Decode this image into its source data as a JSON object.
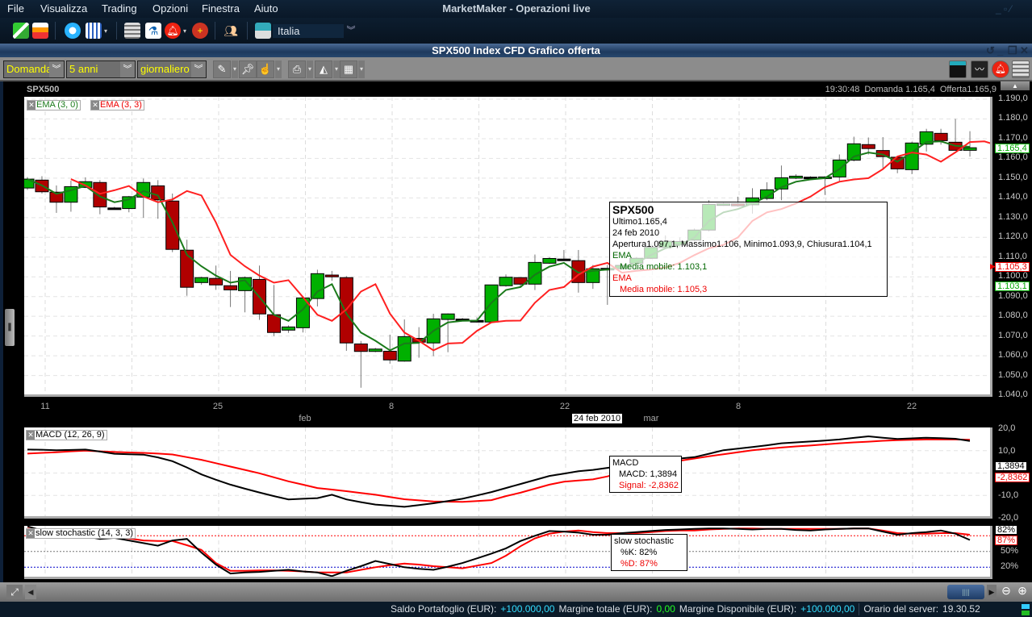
{
  "menu": {
    "items": [
      "File",
      "Visualizza",
      "Trading",
      "Opzioni",
      "Finestra",
      "Aiuto"
    ],
    "app_title": "MarketMaker - Operazioni live"
  },
  "toolbar": {
    "icons": [
      "tree-view-icon",
      "layout-icon",
      "briefcase-icon",
      "calendar-grid-icon",
      "news-icon",
      "microscope-icon",
      "alarm-bell-icon",
      "add-alert-icon",
      "users-icon",
      "monitor-icon"
    ],
    "market_select": "Italia"
  },
  "window": {
    "title": "SPX500 Index CFD Grafico offerta"
  },
  "chart_toolbar": {
    "price_type": "Domanda",
    "period": "5 anni",
    "interval": "giornaliero",
    "right_icons": [
      "layout-panel-icon",
      "chart-line-icon",
      "alarm-bell-icon",
      "news-icon"
    ]
  },
  "chart_header": {
    "symbol": "SPX500",
    "time": "19:30:48",
    "bid": "Domanda 1.165,4",
    "ask": "Offerta1.165,9"
  },
  "indicators": {
    "ema1": "EMA (3, 0)",
    "ema2": "EMA (3, 3)",
    "macd": "MACD (12, 26, 9)",
    "stoch": "slow stochastic (14, 3, 3)"
  },
  "price_axis": [
    "1.190,0",
    "1.180,0",
    "1.170,0",
    "1.160,0",
    "1.150,0",
    "1.140,0",
    "1.130,0",
    "1.120,0",
    "1.110,0",
    "1.100,0",
    "1.090,0",
    "1.080,0",
    "1.070,0",
    "1.060,0",
    "1.050,0",
    "1.040,0"
  ],
  "price_boxes": {
    "last": "1.165,4",
    "ema2": "1.105,3",
    "ema1": "1.103,1"
  },
  "date_axis": {
    "days": [
      "11",
      "25",
      "8",
      "22",
      "8",
      "22"
    ],
    "months": [
      "feb",
      "mar"
    ],
    "cursor": "24 feb 2010"
  },
  "tooltip": {
    "symbol": "SPX500",
    "last": "Ultimo1.165,4",
    "date": "24 feb 2010",
    "ohlc": "Apertura1.097,1, Massimo1.106, Minimo1.093,9, Chiusura1.104,1",
    "ema1_title": "EMA",
    "ema1_value": "Media mobile: 1.103,1",
    "ema2_title": "EMA",
    "ema2_value": "Media mobile: 1.105,3"
  },
  "macd_axis": [
    "20,0",
    "10,0",
    "-10,0",
    "-20,0"
  ],
  "macd_boxes": {
    "macd": "1,3894",
    "signal": "-2,8362"
  },
  "macd_tooltip": {
    "title": "MACD",
    "macd": "MACD: 1,3894",
    "signal": "Signal: -2,8362"
  },
  "stoch_axis": [
    "50%",
    "20%"
  ],
  "stoch_boxes": {
    "k": "82%",
    "d": "87%"
  },
  "stoch_tooltip": {
    "title": "slow stochastic",
    "k": "%K: 82%",
    "d": "%D: 87%"
  },
  "status": {
    "balance_label": "Saldo Portafoglio (EUR):",
    "balance_value": "+100.000,00",
    "margin_label": "Margine totale (EUR):",
    "margin_value": "0,00",
    "available_label": "Margine Disponibile (EUR):",
    "available_value": "+100.000,00",
    "server_label": "Orario del server:",
    "server_time": "19.30.52"
  },
  "colors": {
    "up": "#00b000",
    "down": "#b00000",
    "ema1": "#1a7a1a",
    "ema2": "#ff2020",
    "macd": "#000000",
    "signal": "#ff0000",
    "accent_cyan": "#33ddff",
    "yellow": "#ffff00"
  },
  "chart_data": [
    {
      "type": "candlestick",
      "title": "SPX500",
      "ylim": [
        1040,
        1190
      ],
      "grid": true,
      "ohlc": [
        [
          1145.0,
          1150.5,
          1144.0,
          1149.5
        ],
        [
          1149.0,
          1151.0,
          1142.2,
          1143.1
        ],
        [
          1142.9,
          1146.3,
          1132.4,
          1137.8
        ],
        [
          1137.8,
          1148.7,
          1133.0,
          1145.7
        ],
        [
          1145.3,
          1150.4,
          1145.0,
          1148.2
        ],
        [
          1147.8,
          1149.0,
          1131.7,
          1135.4
        ],
        [
          1134.9,
          1135.5,
          1134.3,
          1134.9
        ],
        [
          1134.6,
          1141.0,
          1132.7,
          1140.6
        ],
        [
          1140.4,
          1149.8,
          1129.9,
          1147.8
        ],
        [
          1146.1,
          1149.0,
          1129.4,
          1139.0
        ],
        [
          1138.4,
          1142.2,
          1112.5,
          1113.9
        ],
        [
          1113.5,
          1118.8,
          1090.4,
          1094.7
        ],
        [
          1097.1,
          1100.0,
          1096.0,
          1099.6
        ],
        [
          1099.2,
          1105.7,
          1093.4,
          1095.9
        ],
        [
          1095.5,
          1103.0,
          1084.7,
          1093.4
        ],
        [
          1093.0,
          1100.2,
          1082.0,
          1099.6
        ],
        [
          1098.7,
          1105.7,
          1078.2,
          1081.2
        ],
        [
          1080.8,
          1095.9,
          1070.0,
          1071.8
        ],
        [
          1073.0,
          1075.4,
          1071.6,
          1074.6
        ],
        [
          1074.2,
          1089.7,
          1071.8,
          1089.3
        ],
        [
          1089.0,
          1103.6,
          1085.0,
          1101.6
        ],
        [
          1100.9,
          1103.0,
          1098.0,
          1100.0
        ],
        [
          1099.6,
          1100.4,
          1062.5,
          1066.5
        ],
        [
          1066.0,
          1067.5,
          1043.8,
          1062.2
        ],
        [
          1062.2,
          1064.0,
          1061.8,
          1063.4
        ],
        [
          1062.3,
          1070.7,
          1056.0,
          1057.9
        ],
        [
          1057.3,
          1078.4,
          1057.0,
          1069.7
        ],
        [
          1068.8,
          1074.5,
          1059.0,
          1066.9
        ],
        [
          1066.5,
          1081.3,
          1059.8,
          1078.7
        ],
        [
          1078.4,
          1081.5,
          1061.8,
          1081.2
        ],
        [
          1078.6,
          1079.2,
          1078.0,
          1078.6
        ],
        [
          1077.9,
          1079.5,
          1076.8,
          1077.9
        ],
        [
          1077.1,
          1096.0,
          1076.5,
          1095.9
        ],
        [
          1095.5,
          1101.2,
          1095.0,
          1099.8
        ],
        [
          1099.6,
          1099.8,
          1095.0,
          1096.3
        ],
        [
          1096.3,
          1111.3,
          1093.3,
          1107.3
        ],
        [
          1106.9,
          1110.0,
          1106.5,
          1109.3
        ],
        [
          1109.0,
          1113.6,
          1108.5,
          1109.0
        ],
        [
          1108.2,
          1113.6,
          1092.0,
          1097.1
        ],
        [
          1097.1,
          1106.0,
          1093.9,
          1104.1
        ],
        [
          1104.3,
          1106.0,
          1085.8,
          1104.3
        ],
        [
          1104.1,
          1106.5,
          1103.5,
          1105.8
        ],
        [
          1106.8,
          1110.0,
          1106.0,
          1109.4
        ],
        [
          1109.4,
          1117.0,
          1109.0,
          1114.9
        ],
        [
          1114.9,
          1121.0,
          1114.5,
          1118.0
        ],
        [
          1116.4,
          1120.0,
          1115.0,
          1117.9
        ],
        [
          1118.6,
          1124.5,
          1118.0,
          1123.7
        ],
        [
          1123.7,
          1138.8,
          1123.0,
          1136.7
        ],
        [
          1136.5,
          1137.5,
          1136.0,
          1137.0
        ],
        [
          1137.0,
          1140.6,
          1135.5,
          1136.0
        ],
        [
          1136.5,
          1144.9,
          1132.0,
          1140.0
        ],
        [
          1139.7,
          1147.9,
          1138.8,
          1144.1
        ],
        [
          1144.5,
          1156.4,
          1138.8,
          1150.2
        ],
        [
          1150.0,
          1152.0,
          1149.5,
          1151.0
        ],
        [
          1150.5,
          1151.0,
          1150.0,
          1150.5
        ],
        [
          1149.9,
          1151.0,
          1141.5,
          1150.6
        ],
        [
          1150.6,
          1162.0,
          1148.0,
          1159.2
        ],
        [
          1159.1,
          1171.0,
          1158.5,
          1167.4
        ],
        [
          1167.0,
          1170.6,
          1162.0,
          1165.0
        ],
        [
          1164.0,
          1170.8,
          1155.0,
          1160.9
        ],
        [
          1160.6,
          1160.6,
          1152.5,
          1154.7
        ],
        [
          1154.3,
          1168.5,
          1152.0,
          1167.8
        ],
        [
          1167.2,
          1175.0,
          1163.5,
          1173.5
        ],
        [
          1172.7,
          1175.0,
          1167.0,
          1169.0
        ],
        [
          1168.2,
          1180.0,
          1164.0,
          1164.1
        ],
        [
          1164.1,
          1173.8,
          1160.9,
          1165.4
        ]
      ],
      "overlays": [
        {
          "name": "EMA (3, 0)",
          "period": 3,
          "shift": 0
        },
        {
          "name": "EMA (3, 3)",
          "period": 3,
          "shift": 3
        }
      ]
    },
    {
      "type": "line",
      "title": "MACD (12, 26, 9)",
      "ylim": [
        -20,
        20
      ],
      "series": [
        {
          "name": "MACD",
          "values": [
            10.5,
            10.4,
            10.2,
            10.3,
            10.5,
            9.6,
            8.6,
            8.4,
            8.2,
            7.0,
            5.3,
            2.5,
            -0.6,
            -3.0,
            -5.2,
            -7.0,
            -8.7,
            -10.3,
            -11.8,
            -11.5,
            -11.2,
            -9.7,
            -11.8,
            -13.0,
            -14.1,
            -14.6,
            -15.1,
            -14.3,
            -13.5,
            -12.5,
            -11.5,
            -10.0,
            -8.5,
            -6.7,
            -4.9,
            -3.1,
            -1.3,
            -0.3,
            0.8,
            1.39,
            2.3,
            3.2,
            4.1,
            5.0,
            5.9,
            6.5,
            7.1,
            8.6,
            10.2,
            10.9,
            11.6,
            12.4,
            13.3,
            13.7,
            14.1,
            14.5,
            15.0,
            15.7,
            16.4,
            15.8,
            15.2,
            15.5,
            15.8,
            15.6,
            15.3,
            14.3
          ]
        },
        {
          "name": "Signal",
          "values": [
            8.7,
            9.0,
            9.3,
            9.7,
            10.0,
            9.7,
            9.4,
            9.2,
            9.0,
            8.7,
            8.3,
            7.1,
            5.9,
            4.4,
            2.9,
            1.4,
            -0.1,
            -1.9,
            -3.7,
            -5.2,
            -6.7,
            -7.4,
            -8.1,
            -8.9,
            -9.7,
            -10.7,
            -11.7,
            -12.2,
            -12.7,
            -12.8,
            -12.9,
            -12.5,
            -12.1,
            -10.3,
            -8.8,
            -7.0,
            -5.2,
            -3.9,
            -3.3,
            -2.84,
            -1.5,
            0.4,
            2.3,
            3.4,
            4.4,
            5.5,
            6.5,
            7.5,
            8.4,
            9.3,
            10.2,
            10.8,
            11.4,
            11.9,
            12.3,
            12.8,
            13.3,
            13.7,
            14.0,
            14.4,
            14.7,
            14.9,
            15.0,
            15.0,
            15.0,
            14.9
          ]
        }
      ]
    },
    {
      "type": "line",
      "title": "slow stochastic (14, 3, 3)",
      "ylim": [
        0,
        100
      ],
      "reference_lines": [
        80,
        50,
        20
      ],
      "series": [
        {
          "name": "%K",
          "values": [
            98,
            90,
            84,
            81,
            79,
            74,
            76,
            71,
            66,
            61,
            71,
            74,
            48,
            25,
            8,
            10,
            11,
            13,
            15,
            12,
            10,
            3,
            13,
            22,
            32,
            26,
            20,
            17,
            15,
            21,
            28,
            37,
            46,
            56,
            70,
            80,
            89,
            88,
            86,
            82,
            82,
            85,
            87,
            89,
            91,
            92,
            93,
            94,
            94,
            93,
            92,
            93,
            93,
            91,
            90,
            92,
            93,
            94,
            94,
            88,
            82,
            85,
            87,
            90,
            84,
            72
          ]
        },
        {
          "name": "%D",
          "values": [
            94,
            89,
            84,
            81,
            79,
            78,
            78,
            75,
            71,
            70,
            70,
            62,
            53,
            28,
            13,
            13,
            14,
            14,
            13,
            12,
            10,
            10,
            10,
            15,
            20,
            24,
            27,
            25,
            22,
            20,
            18,
            23,
            28,
            42,
            60,
            75,
            84,
            88,
            90,
            87,
            85,
            85,
            85,
            87,
            89,
            90,
            90,
            92,
            93,
            94,
            94,
            93,
            93,
            93,
            93,
            93,
            93,
            94,
            94,
            90,
            85,
            84,
            84,
            85,
            85,
            82
          ]
        }
      ]
    }
  ]
}
